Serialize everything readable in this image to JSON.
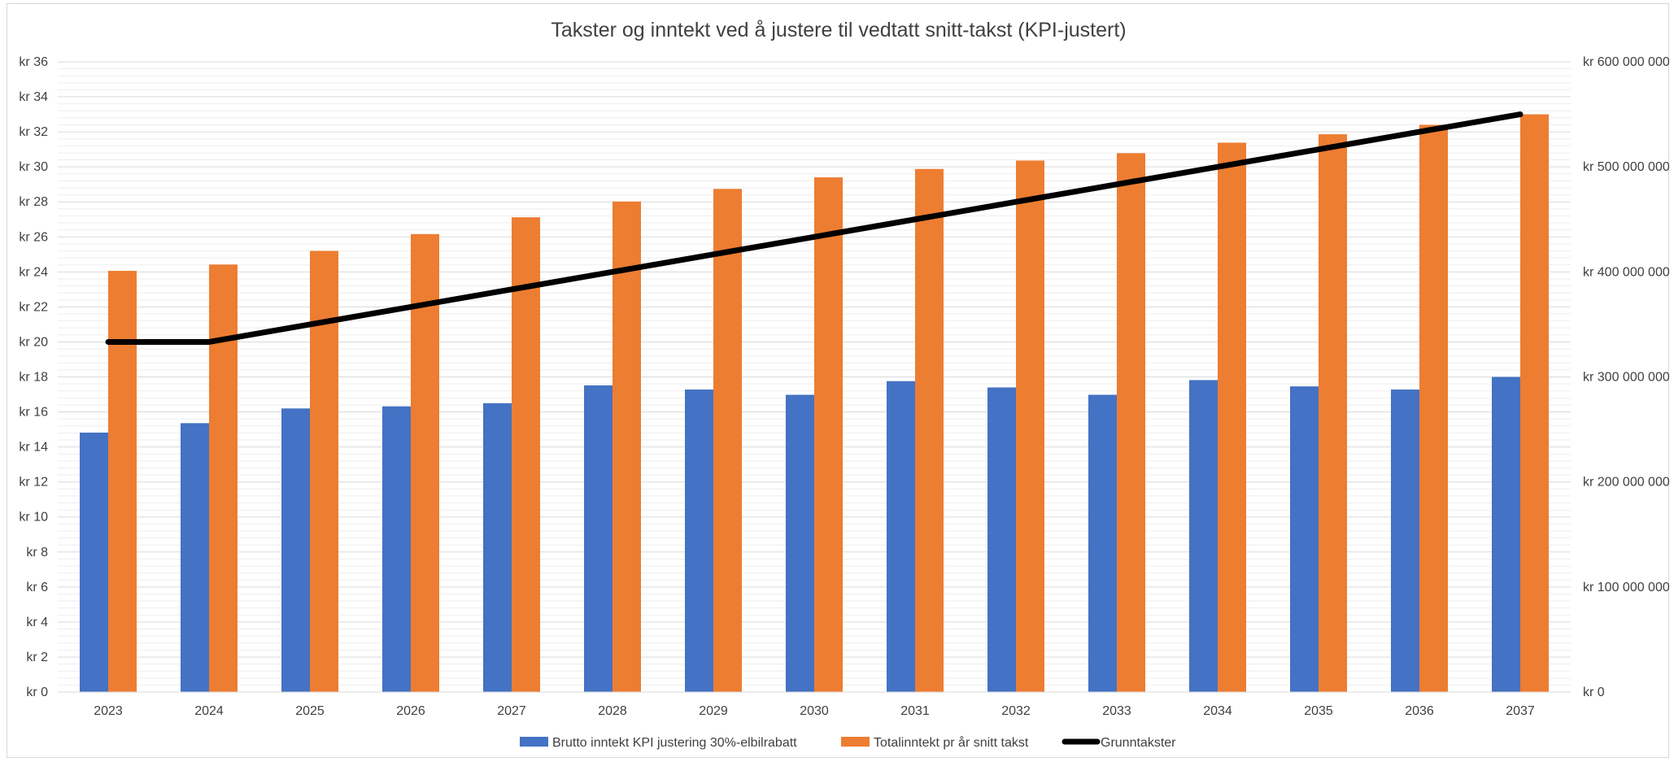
{
  "chart_data": {
    "type": "bar",
    "title": "Takster og inntekt ved å justere til vedtatt snitt-takst (KPI-justert)",
    "categories": [
      "2023",
      "2024",
      "2025",
      "2026",
      "2027",
      "2028",
      "2029",
      "2030",
      "2031",
      "2032",
      "2033",
      "2034",
      "2035",
      "2036",
      "2037"
    ],
    "series": [
      {
        "name": "Brutto inntekt KPI justering 30%-elbilrabatt",
        "type": "bar",
        "axis": "right",
        "color": "#4472c4",
        "values": [
          247000000,
          256000000,
          270000000,
          272000000,
          275000000,
          292000000,
          288000000,
          283000000,
          296000000,
          290000000,
          283000000,
          297000000,
          291000000,
          288000000,
          300000000
        ]
      },
      {
        "name": "Totalinntekt pr år snitt takst",
        "type": "bar",
        "axis": "right",
        "color": "#ed7d31",
        "values": [
          401000000,
          407000000,
          420000000,
          436000000,
          452000000,
          467000000,
          479000000,
          490000000,
          498000000,
          506000000,
          513000000,
          523000000,
          531000000,
          540000000,
          550000000
        ]
      },
      {
        "name": "Grunntakster",
        "type": "line",
        "axis": "left",
        "color": "#000000",
        "values": [
          20,
          20,
          21,
          22,
          23,
          24,
          25,
          26,
          27,
          28,
          29,
          30,
          31,
          32,
          33
        ]
      }
    ],
    "y_left": {
      "min": 0,
      "max": 36,
      "step": 2,
      "tick_labels": [
        "kr 0",
        "kr 2",
        "kr 4",
        "kr 6",
        "kr 8",
        "kr 10",
        "kr 12",
        "kr 14",
        "kr 16",
        "kr 18",
        "kr 20",
        "kr 22",
        "kr 24",
        "kr 26",
        "kr 28",
        "kr 30",
        "kr 32",
        "kr 34",
        "kr 36"
      ]
    },
    "y_right": {
      "min": 0,
      "max": 600000000,
      "step": 100000000,
      "tick_labels": [
        "kr 0",
        "kr 100 000 000",
        "kr 200 000 000",
        "kr 300 000 000",
        "kr 400 000 000",
        "kr 500 000 000",
        "kr 600 000 000"
      ]
    },
    "grid": true,
    "legend_position": "bottom"
  }
}
